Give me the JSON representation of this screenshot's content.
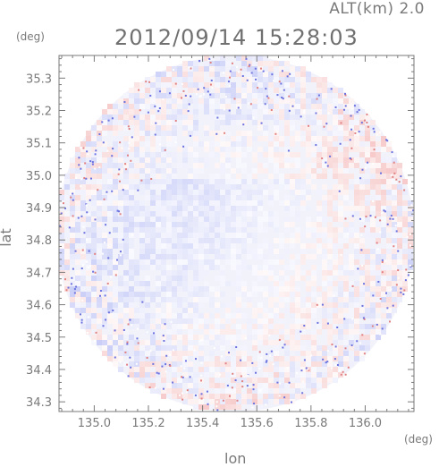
{
  "header": {
    "alt_label": "ALT(km) 2.0",
    "timestamp": "2012/09/14 15:28:03"
  },
  "chart_data": {
    "type": "heatmap",
    "title": "2012/09/14 15:28:03",
    "subtitle": "ALT(km) 2.0",
    "xlabel": "lon",
    "ylabel": "lat",
    "x_unit": "(deg)",
    "y_unit": "(deg)",
    "xlim": [
      134.87,
      136.18
    ],
    "ylim": [
      34.27,
      35.37
    ],
    "x_ticks": [
      {
        "value": 135.0,
        "label": "135.0"
      },
      {
        "value": 135.2,
        "label": "135.2"
      },
      {
        "value": 135.4,
        "label": "135.4"
      },
      {
        "value": 135.6,
        "label": "135.6"
      },
      {
        "value": 135.8,
        "label": "135.8"
      },
      {
        "value": 136.0,
        "label": "136.0"
      }
    ],
    "y_ticks": [
      {
        "value": 34.3,
        "label": "34.3"
      },
      {
        "value": 34.4,
        "label": "34.4"
      },
      {
        "value": 34.5,
        "label": "34.5"
      },
      {
        "value": 34.6,
        "label": "34.6"
      },
      {
        "value": 34.7,
        "label": "34.7"
      },
      {
        "value": 34.8,
        "label": "34.8"
      },
      {
        "value": 34.9,
        "label": "34.9"
      },
      {
        "value": 35.0,
        "label": "35.0"
      },
      {
        "value": 35.1,
        "label": "35.1"
      },
      {
        "value": 35.2,
        "label": "35.2"
      },
      {
        "value": 35.3,
        "label": "35.3"
      }
    ],
    "domain": {
      "shape": "circle",
      "center": [
        135.52,
        34.82
      ],
      "radius_lon": 0.66,
      "radius_lat": 0.55
    },
    "colors": {
      "positive": "#f0a0a0",
      "negative": "#a0a8f0",
      "neutral": "#f2f2fb",
      "axis": "#7a7a7a"
    }
  }
}
